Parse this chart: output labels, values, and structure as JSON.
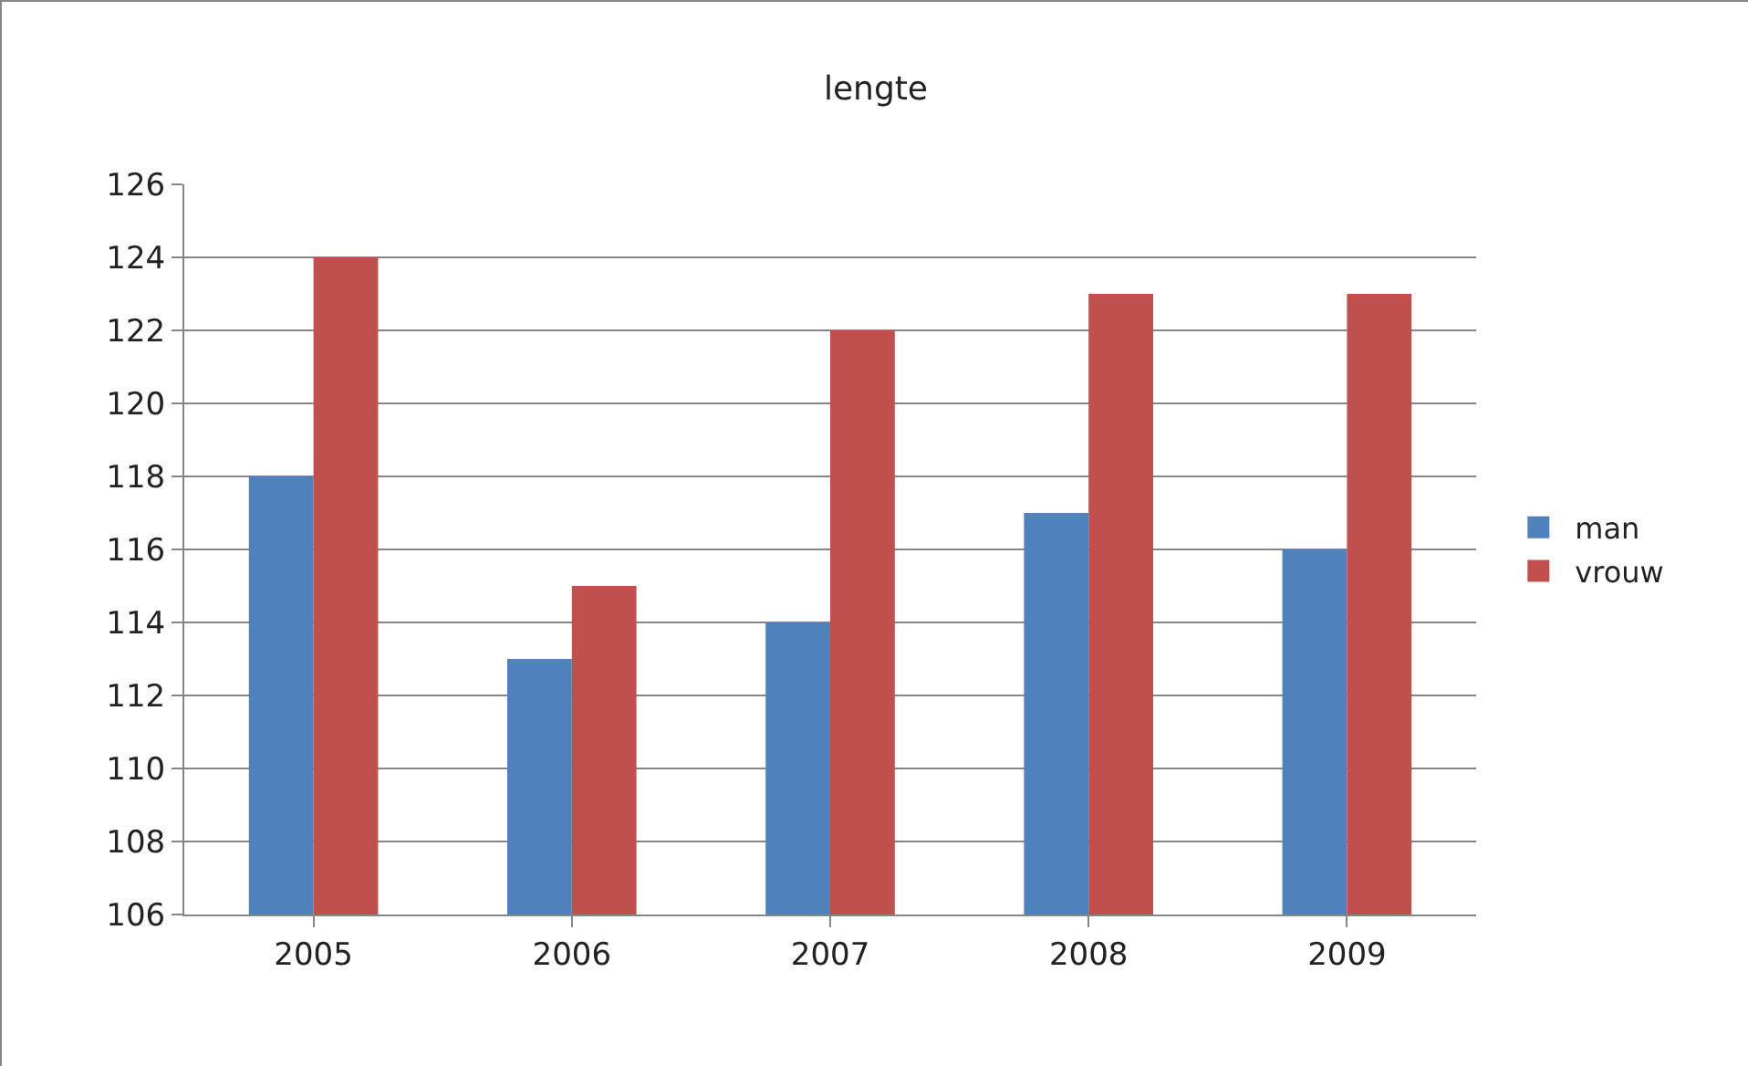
{
  "chart_data": {
    "type": "bar",
    "title": "lengte",
    "categories": [
      "2005",
      "2006",
      "2007",
      "2008",
      "2009"
    ],
    "series": [
      {
        "name": "man",
        "color": "#4f81bd",
        "values": [
          118,
          113,
          114,
          117,
          116
        ]
      },
      {
        "name": "vrouw",
        "color": "#c0504d",
        "values": [
          124,
          115,
          122,
          123,
          123
        ]
      }
    ],
    "ylim": [
      106,
      126
    ],
    "yticks": [
      106,
      108,
      110,
      112,
      114,
      116,
      118,
      120,
      122,
      124,
      126
    ],
    "grid": "y",
    "legend": "right"
  }
}
